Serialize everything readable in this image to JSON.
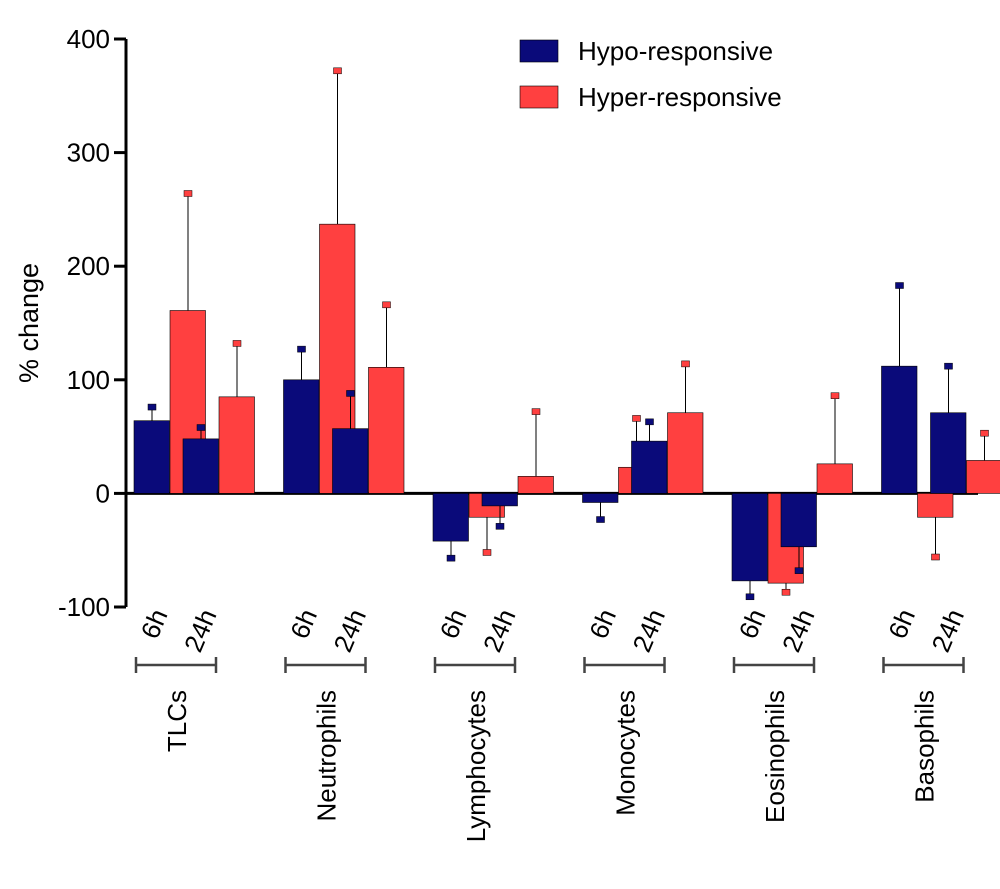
{
  "chart_data": {
    "type": "bar",
    "ylabel": "% change",
    "ylim": [
      -100,
      400
    ],
    "yticks": [
      "-100",
      "0",
      "100",
      "200",
      "300",
      "400"
    ],
    "groups": [
      "TLCs",
      "Neutrophils",
      "Lymphocytes",
      "Monocytes",
      "Eosinophils",
      "Basophils"
    ],
    "timepoints": [
      "6h",
      "24h"
    ],
    "legend_position": "top-right",
    "grid": false,
    "series": [
      {
        "name": "Hypo-responsive",
        "color": "#0a0a7a",
        "values": [
          [
            64,
            48
          ],
          [
            100,
            57
          ],
          [
            -42,
            -11
          ],
          [
            -8,
            46
          ],
          [
            -77,
            -47
          ],
          [
            112,
            71
          ]
        ],
        "errors": [
          [
            76,
            58
          ],
          [
            127,
            88
          ],
          [
            -57,
            -29
          ],
          [
            -23,
            63
          ],
          [
            -91,
            -68
          ],
          [
            183,
            112
          ]
        ]
      },
      {
        "name": "Hyper-responsive",
        "color": "#ff4040",
        "values": [
          [
            161,
            85
          ],
          [
            237,
            111
          ],
          [
            -21,
            15
          ],
          [
            23,
            71
          ],
          [
            -79,
            26
          ],
          [
            -21,
            29
          ]
        ],
        "errors": [
          [
            264,
            132
          ],
          [
            372,
            166
          ],
          [
            -52,
            72
          ],
          [
            66,
            114
          ],
          [
            -87,
            86
          ],
          [
            -56,
            53
          ]
        ]
      }
    ]
  }
}
